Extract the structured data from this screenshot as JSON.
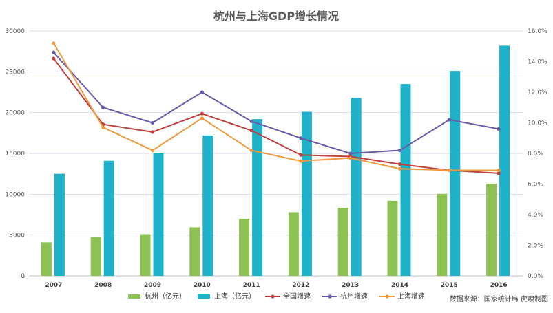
{
  "chart_data": {
    "type": "bar+line",
    "title": "杭州与上海GDP增长情况",
    "categories": [
      "2007",
      "2008",
      "2009",
      "2010",
      "2011",
      "2012",
      "2013",
      "2014",
      "2015",
      "2016"
    ],
    "left_axis": {
      "ylim": [
        0,
        30000
      ],
      "ticks": [
        "0",
        "5000",
        "10000",
        "15000",
        "20000",
        "25000",
        "30000"
      ]
    },
    "right_axis": {
      "ylim": [
        0,
        16
      ],
      "ticks": [
        "0.0%",
        "2.0%",
        "4.0%",
        "6.0%",
        "8.0%",
        "10.0%",
        "12.0%",
        "14.0%",
        "16.0%"
      ]
    },
    "bar_series": [
      {
        "name": "杭州（亿元）",
        "color": "#8dc153",
        "axis": "left",
        "values": [
          4100,
          4780,
          5100,
          5950,
          7000,
          7800,
          8340,
          9200,
          10050,
          11300
        ]
      },
      {
        "name": "上海（亿元）",
        "color": "#1fb1ca",
        "axis": "left",
        "values": [
          12500,
          14100,
          15000,
          17200,
          19200,
          20100,
          21800,
          23500,
          25100,
          28200
        ]
      }
    ],
    "line_series": [
      {
        "name": "全国增速",
        "color": "#c0403f",
        "axis": "right",
        "values": [
          14.2,
          9.9,
          9.4,
          10.6,
          9.5,
          7.9,
          7.8,
          7.3,
          6.9,
          6.7
        ]
      },
      {
        "name": "杭州增速",
        "color": "#6b5ba6",
        "axis": "right",
        "values": [
          14.6,
          11.0,
          10.0,
          12.0,
          10.1,
          9.0,
          8.0,
          8.2,
          10.2,
          9.6
        ]
      },
      {
        "name": "上海增速",
        "color": "#ef9a3e",
        "axis": "right",
        "values": [
          15.2,
          9.7,
          8.2,
          10.3,
          8.2,
          7.5,
          7.7,
          7.0,
          6.9,
          6.9
        ]
      }
    ],
    "legend_position": "bottom",
    "grid": true
  },
  "source_note": "数据来源：国家统计局 虎嗅制图"
}
